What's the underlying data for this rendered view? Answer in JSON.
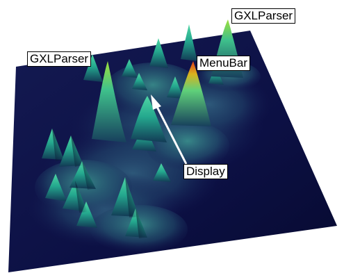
{
  "labels": {
    "gxlparser_top": "GXLParser",
    "gxlparser_left": "GXLParser",
    "menubar": "MenuBar",
    "display": "Display"
  },
  "colors": {
    "background": "#ffffff",
    "plane": "#0c0f3e",
    "low_surface": "#1d3a63",
    "peak_mid": "#28b896",
    "peak_high": "#8ad43c",
    "peak_max": "#e84418",
    "label_bg": "#ffffff",
    "arrow": "#ffffff"
  }
}
